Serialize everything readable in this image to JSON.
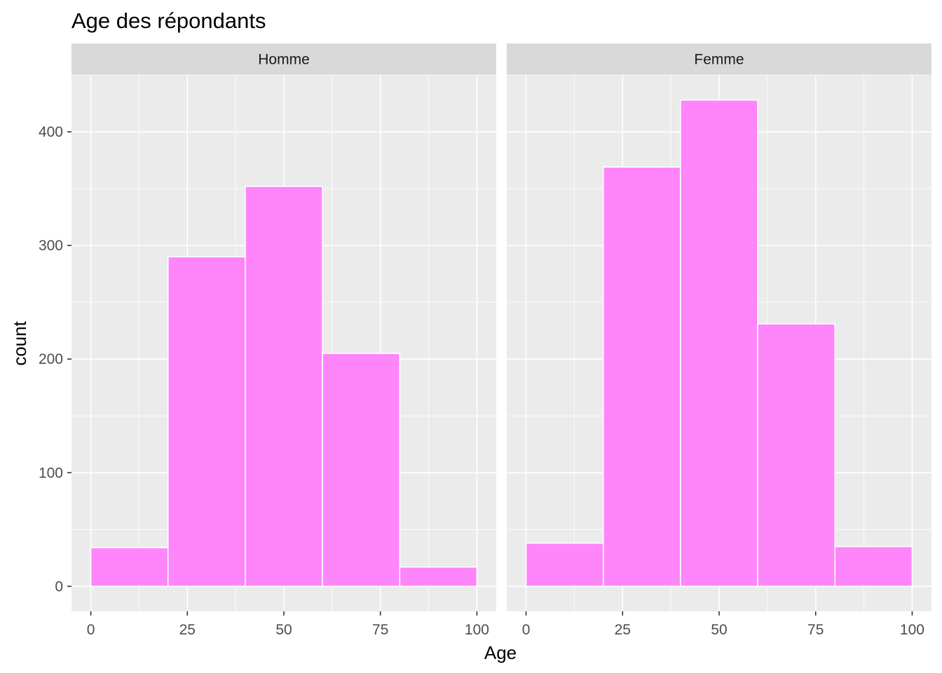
{
  "chart_data": {
    "type": "bar",
    "title": "Age des répondants",
    "xlabel": "Age",
    "ylabel": "count",
    "xlim": [
      -5,
      105
    ],
    "ylim": [
      -22,
      450
    ],
    "x_ticks": [
      "0",
      "25",
      "50",
      "75",
      "100"
    ],
    "y_ticks": [
      "0",
      "100",
      "200",
      "300",
      "400"
    ],
    "bins": [
      [
        0,
        20
      ],
      [
        20,
        40
      ],
      [
        40,
        60
      ],
      [
        60,
        80
      ],
      [
        80,
        100
      ]
    ],
    "fill_color": "#ff85fb",
    "bar_outline_color": "#ffffff",
    "panel_background": "#ebebeb",
    "strip_background": "#d9d9d9",
    "grid": true,
    "panels": [
      {
        "name": "Homme",
        "values": [
          34,
          290,
          352,
          205,
          17
        ]
      },
      {
        "name": "Femme",
        "values": [
          38,
          369,
          428,
          231,
          35
        ]
      }
    ]
  }
}
